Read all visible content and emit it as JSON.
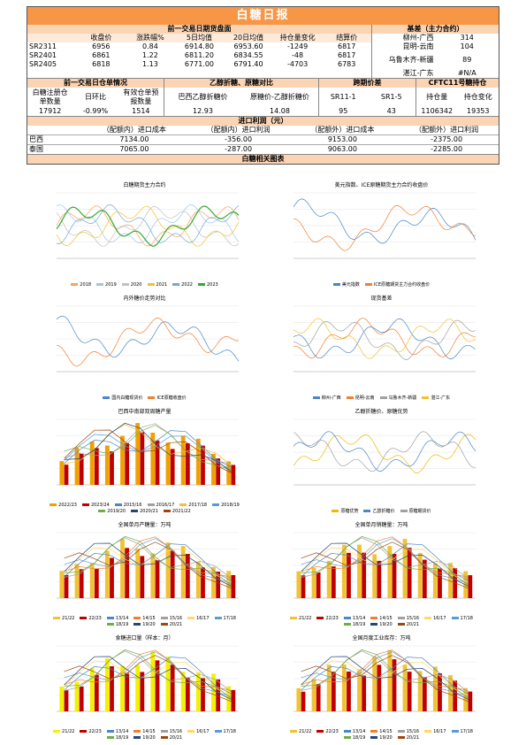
{
  "title": "白糖日报",
  "futures": {
    "title": "前一交易日期货盘面",
    "headers": [
      "收盘价",
      "涨跌幅%",
      "5日均值",
      "20日均值",
      "持仓量变化",
      "结算价"
    ],
    "rows": [
      [
        "SR2311",
        "6956",
        "0.84",
        "6914.80",
        "6953.60",
        "-1249",
        "6817"
      ],
      [
        "SR2401",
        "6861",
        "1.22",
        "6811.20",
        "6834.55",
        "-48",
        "6817"
      ],
      [
        "SR2405",
        "6818",
        "1.13",
        "6771.00",
        "6791.40",
        "-4703",
        "6783"
      ]
    ]
  },
  "basis": {
    "title": "基差（主力合约）",
    "rows": [
      [
        "柳州-广西",
        "314"
      ],
      [
        "昆明-云南",
        "104"
      ],
      [
        "乌鲁木齐-新疆",
        "89"
      ],
      [
        "湛江-广东",
        "#N/A"
      ]
    ]
  },
  "blocks": [
    {
      "title": "前一交易日仓单情况",
      "headers": [
        "白糖注册仓单数量",
        "日环比",
        "有效仓单预报数量"
      ],
      "values": [
        "17912",
        "-0.99%",
        "1514"
      ]
    },
    {
      "title": "乙醇折糖、原糖对比",
      "headers": [
        "巴西乙醇折糖价",
        "原糖价-乙醇折糖价"
      ],
      "values": [
        "12.93",
        "14.08"
      ]
    },
    {
      "title": "跨期价差",
      "headers": [
        "SR11-1",
        "SR1-5"
      ],
      "values": [
        "95",
        "43"
      ]
    },
    {
      "title": "CFTC11号糖持仓",
      "headers": [
        "持仓量",
        "持仓变化"
      ],
      "values": [
        "1106342",
        "19353"
      ]
    }
  ],
  "import": {
    "title": "进口利润（元）",
    "headers": [
      "（配额内）进口成本",
      "（配额内）进口利润",
      "（配额外）进口成本",
      "（配额外）进口利润"
    ],
    "rows": [
      [
        "巴西",
        "7134.00",
        "-356.00",
        "9153.00",
        "-2375.00"
      ],
      [
        "泰国",
        "7065.00",
        "-287.00",
        "9063.00",
        "-2285.00"
      ]
    ]
  },
  "charts_title": "白糖相关图表",
  "charts": [
    {
      "title": "白糖期货主力合约",
      "type": "line",
      "legend": [
        {
          "name": "2018",
          "color": "#f4a460"
        },
        {
          "name": "2019",
          "color": "#9fc5e8"
        },
        {
          "name": "2020",
          "color": "#c0c0c0"
        },
        {
          "name": "2021",
          "color": "#f1c232"
        },
        {
          "name": "2022",
          "color": "#6fa8dc"
        },
        {
          "name": "2023",
          "color": "#38a830"
        }
      ]
    },
    {
      "title": "美元指数、ICE原糖期货主力合约收盘价",
      "type": "line",
      "legend": [
        {
          "name": "美元指数",
          "color": "#4a86c8"
        },
        {
          "name": "ICE原糖期货主力合约收盘价",
          "color": "#f08030"
        }
      ]
    },
    {
      "title": "内外糖价走势对比",
      "type": "line",
      "legend": [
        {
          "name": "国内白糖现货价",
          "color": "#4a86c8"
        },
        {
          "name": "ICE原糖收盘价",
          "color": "#f08030"
        }
      ]
    },
    {
      "title": "现货基差",
      "type": "line",
      "legend": [
        {
          "name": "柳州-广西",
          "color": "#4a86c8"
        },
        {
          "name": "昆明-云南",
          "color": "#f08030"
        },
        {
          "name": "乌鲁木齐-新疆",
          "color": "#a0a0a0"
        },
        {
          "name": "湛江-广东",
          "color": "#f1c232"
        }
      ]
    },
    {
      "title": "巴西中南部双周糖产量",
      "type": "bar",
      "legend": [
        {
          "name": "2022/23",
          "color": "#f1a000"
        },
        {
          "name": "2023/24",
          "color": "#c00000"
        },
        {
          "name": "2015/16",
          "color": "#4a86c8"
        },
        {
          "name": "2016/17",
          "color": "#a0a0a0"
        },
        {
          "name": "2017/18",
          "color": "#f1c232"
        },
        {
          "name": "2018/19",
          "color": "#5b9bd5"
        },
        {
          "name": "2019/20",
          "color": "#70ad47"
        },
        {
          "name": "2020/21",
          "color": "#264478"
        },
        {
          "name": "2021/22",
          "color": "#9e480e"
        }
      ]
    },
    {
      "title": "乙醇折糖价、原糖优势",
      "type": "line",
      "legend": [
        {
          "name": "原糖优势",
          "color": "#f1b800"
        },
        {
          "name": "乙醇折糖价",
          "color": "#4a86c8"
        },
        {
          "name": "原糖期货价",
          "color": "#a0a0a0"
        }
      ]
    },
    {
      "title": "全国单月产糖量：万吨",
      "type": "bar",
      "legend": [
        {
          "name": "21/22",
          "color": "#f1c232"
        },
        {
          "name": "22/23",
          "color": "#c00000"
        },
        {
          "name": "13/14",
          "color": "#4a86c8"
        },
        {
          "name": "14/15",
          "color": "#f08030"
        },
        {
          "name": "15/16",
          "color": "#a0a0a0"
        },
        {
          "name": "16/17",
          "color": "#ffd966"
        },
        {
          "name": "17/18",
          "color": "#5b9bd5"
        },
        {
          "name": "18/19",
          "color": "#70ad47"
        },
        {
          "name": "19/20",
          "color": "#264478"
        },
        {
          "name": "20/21",
          "color": "#9e480e"
        }
      ]
    },
    {
      "title": "全国单月销糖量：万吨",
      "type": "bar",
      "legend": [
        {
          "name": "21/22",
          "color": "#f1c232"
        },
        {
          "name": "22/23",
          "color": "#c00000"
        },
        {
          "name": "13/14",
          "color": "#4a86c8"
        },
        {
          "name": "14/15",
          "color": "#f08030"
        },
        {
          "name": "15/16",
          "color": "#a0a0a0"
        },
        {
          "name": "16/17",
          "color": "#ffd966"
        },
        {
          "name": "17/18",
          "color": "#5b9bd5"
        },
        {
          "name": "18/19",
          "color": "#70ad47"
        },
        {
          "name": "19/20",
          "color": "#264478"
        },
        {
          "name": "20/21",
          "color": "#9e480e"
        }
      ]
    },
    {
      "title": "食糖进口量（样本：月）",
      "type": "bar",
      "legend": [
        {
          "name": "21/22",
          "color": "#f1f100"
        },
        {
          "name": "22/23",
          "color": "#c00000"
        },
        {
          "name": "13/14",
          "color": "#4a86c8"
        },
        {
          "name": "14/15",
          "color": "#f08030"
        },
        {
          "name": "15/16",
          "color": "#a0a0a0"
        },
        {
          "name": "16/17",
          "color": "#ffd966"
        },
        {
          "name": "17/18",
          "color": "#5b9bd5"
        },
        {
          "name": "18/19",
          "color": "#70ad47"
        },
        {
          "name": "19/20",
          "color": "#264478"
        },
        {
          "name": "20/21",
          "color": "#9e480e"
        }
      ]
    },
    {
      "title": "全国月度工业库存：万吨",
      "type": "bar",
      "legend": [
        {
          "name": "21/22",
          "color": "#f1c232"
        },
        {
          "name": "22/23",
          "color": "#c00000"
        },
        {
          "name": "13/14",
          "color": "#4a86c8"
        },
        {
          "name": "14/15",
          "color": "#f08030"
        },
        {
          "name": "15/16",
          "color": "#a0a0a0"
        },
        {
          "name": "16/17",
          "color": "#ffd966"
        },
        {
          "name": "17/18",
          "color": "#5b9bd5"
        },
        {
          "name": "18/19",
          "color": "#70ad47"
        },
        {
          "name": "19/20",
          "color": "#264478"
        },
        {
          "name": "20/21",
          "color": "#9e480e"
        }
      ]
    }
  ]
}
